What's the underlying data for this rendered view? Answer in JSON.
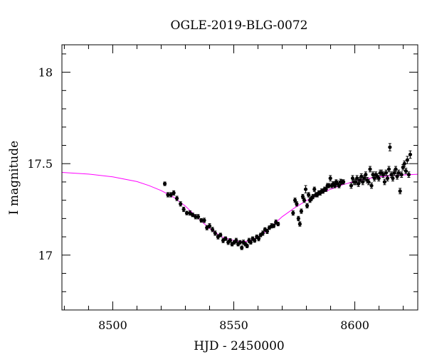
{
  "chart_data": {
    "type": "scatter",
    "title": "OGLE-2019-BLG-0072",
    "xlabel": "HJD - 2450000",
    "ylabel": "I magnitude",
    "xlim": [
      8479,
      8626
    ],
    "ylim": [
      18.15,
      16.7
    ],
    "y_inverted": true,
    "x_ticks": [
      8500,
      8550,
      8600
    ],
    "y_ticks": [
      17,
      17.5,
      18
    ],
    "y_tick_labels": [
      "17",
      "17.5",
      "18"
    ],
    "grid": false,
    "series": [
      {
        "kind": "points_with_errorbars",
        "color": "#000000",
        "points": [
          [
            8521.5,
            17.39,
            0.01
          ],
          [
            8522.8,
            17.33,
            0.012
          ],
          [
            8524.0,
            17.33,
            0.012
          ],
          [
            8525.2,
            17.34,
            0.012
          ],
          [
            8526.5,
            17.31,
            0.012
          ],
          [
            8528.0,
            17.28,
            0.012
          ],
          [
            8529.3,
            17.25,
            0.012
          ],
          [
            8530.6,
            17.23,
            0.01
          ],
          [
            8531.9,
            17.23,
            0.012
          ],
          [
            8533.0,
            17.22,
            0.01
          ],
          [
            8534.2,
            17.21,
            0.012
          ],
          [
            8535.3,
            17.21,
            0.012
          ],
          [
            8536.6,
            17.19,
            0.01
          ],
          [
            8537.8,
            17.19,
            0.012
          ],
          [
            8538.9,
            17.15,
            0.012
          ],
          [
            8540.0,
            17.16,
            0.012
          ],
          [
            8541.2,
            17.14,
            0.012
          ],
          [
            8542.3,
            17.12,
            0.012
          ],
          [
            8543.5,
            17.1,
            0.012
          ],
          [
            8544.5,
            17.11,
            0.01
          ],
          [
            8545.6,
            17.08,
            0.012
          ],
          [
            8546.6,
            17.09,
            0.01
          ],
          [
            8547.7,
            17.07,
            0.012
          ],
          [
            8548.5,
            17.08,
            0.01
          ],
          [
            8549.3,
            17.06,
            0.01
          ],
          [
            8550.2,
            17.07,
            0.01
          ],
          [
            8551.0,
            17.08,
            0.012
          ],
          [
            8551.8,
            17.06,
            0.01
          ],
          [
            8552.6,
            17.07,
            0.01
          ],
          [
            8553.3,
            17.04,
            0.01
          ],
          [
            8554.0,
            17.07,
            0.012
          ],
          [
            8554.8,
            17.06,
            0.01
          ],
          [
            8555.5,
            17.05,
            0.01
          ],
          [
            8556.3,
            17.08,
            0.012
          ],
          [
            8557.0,
            17.07,
            0.01
          ],
          [
            8557.8,
            17.09,
            0.01
          ],
          [
            8558.6,
            17.08,
            0.01
          ],
          [
            8559.5,
            17.1,
            0.01
          ],
          [
            8560.3,
            17.09,
            0.012
          ],
          [
            8561.1,
            17.11,
            0.01
          ],
          [
            8562.0,
            17.12,
            0.012
          ],
          [
            8562.9,
            17.14,
            0.01
          ],
          [
            8563.8,
            17.13,
            0.012
          ],
          [
            8564.7,
            17.15,
            0.01
          ],
          [
            8565.6,
            17.16,
            0.012
          ],
          [
            8566.5,
            17.16,
            0.01
          ],
          [
            8567.4,
            17.18,
            0.012
          ],
          [
            8568.3,
            17.17,
            0.01
          ],
          [
            8574.5,
            17.23,
            0.012
          ],
          [
            8575.3,
            17.3,
            0.012
          ],
          [
            8576.0,
            17.28,
            0.012
          ],
          [
            8576.7,
            17.2,
            0.012
          ],
          [
            8577.3,
            17.17,
            0.012
          ],
          [
            8577.9,
            17.24,
            0.012
          ],
          [
            8578.5,
            17.32,
            0.012
          ],
          [
            8579.1,
            17.3,
            0.012
          ],
          [
            8579.7,
            17.36,
            0.02
          ],
          [
            8580.3,
            17.27,
            0.012
          ],
          [
            8580.9,
            17.33,
            0.012
          ],
          [
            8581.5,
            17.3,
            0.012
          ],
          [
            8582.1,
            17.31,
            0.012
          ],
          [
            8582.7,
            17.32,
            0.012
          ],
          [
            8583.3,
            17.36,
            0.012
          ],
          [
            8583.9,
            17.33,
            0.012
          ],
          [
            8584.5,
            17.33,
            0.012
          ],
          [
            8585.1,
            17.34,
            0.012
          ],
          [
            8585.7,
            17.34,
            0.012
          ],
          [
            8586.3,
            17.35,
            0.012
          ],
          [
            8586.9,
            17.35,
            0.012
          ],
          [
            8587.5,
            17.36,
            0.012
          ],
          [
            8588.1,
            17.36,
            0.012
          ],
          [
            8588.7,
            17.38,
            0.012
          ],
          [
            8589.3,
            17.38,
            0.012
          ],
          [
            8589.9,
            17.42,
            0.015
          ],
          [
            8590.5,
            17.38,
            0.012
          ],
          [
            8591.1,
            17.39,
            0.012
          ],
          [
            8591.7,
            17.38,
            0.012
          ],
          [
            8592.3,
            17.4,
            0.012
          ],
          [
            8592.9,
            17.39,
            0.015
          ],
          [
            8593.5,
            17.38,
            0.012
          ],
          [
            8594.1,
            17.4,
            0.015
          ],
          [
            8594.7,
            17.4,
            0.012
          ],
          [
            8595.3,
            17.4,
            0.012
          ],
          [
            8598.5,
            17.38,
            0.015
          ],
          [
            8599.1,
            17.42,
            0.015
          ],
          [
            8599.7,
            17.4,
            0.015
          ],
          [
            8600.3,
            17.4,
            0.015
          ],
          [
            8600.9,
            17.42,
            0.015
          ],
          [
            8601.5,
            17.39,
            0.015
          ],
          [
            8602.1,
            17.41,
            0.015
          ],
          [
            8602.7,
            17.43,
            0.015
          ],
          [
            8603.3,
            17.4,
            0.015
          ],
          [
            8603.9,
            17.42,
            0.015
          ],
          [
            8604.5,
            17.44,
            0.015
          ],
          [
            8605.1,
            17.41,
            0.015
          ],
          [
            8605.7,
            17.4,
            0.015
          ],
          [
            8606.3,
            17.47,
            0.015
          ],
          [
            8606.9,
            17.38,
            0.015
          ],
          [
            8607.5,
            17.44,
            0.015
          ],
          [
            8608.1,
            17.42,
            0.015
          ],
          [
            8608.7,
            17.44,
            0.015
          ],
          [
            8609.3,
            17.43,
            0.015
          ],
          [
            8609.9,
            17.42,
            0.015
          ],
          [
            8610.5,
            17.45,
            0.015
          ],
          [
            8611.1,
            17.45,
            0.015
          ],
          [
            8611.7,
            17.44,
            0.015
          ],
          [
            8612.3,
            17.4,
            0.015
          ],
          [
            8612.9,
            17.45,
            0.015
          ],
          [
            8613.5,
            17.42,
            0.015
          ],
          [
            8614.1,
            17.47,
            0.015
          ],
          [
            8614.5,
            17.59,
            0.02
          ],
          [
            8615.1,
            17.44,
            0.015
          ],
          [
            8615.7,
            17.42,
            0.015
          ],
          [
            8616.3,
            17.45,
            0.015
          ],
          [
            8616.9,
            17.47,
            0.015
          ],
          [
            8617.5,
            17.43,
            0.015
          ],
          [
            8618.1,
            17.45,
            0.015
          ],
          [
            8618.7,
            17.35,
            0.015
          ],
          [
            8619.3,
            17.44,
            0.015
          ],
          [
            8619.9,
            17.48,
            0.015
          ],
          [
            8620.5,
            17.5,
            0.015
          ],
          [
            8621.1,
            17.46,
            0.015
          ],
          [
            8621.7,
            17.52,
            0.02
          ],
          [
            8622.3,
            17.44,
            0.015
          ],
          [
            8622.9,
            17.55,
            0.02
          ]
        ]
      },
      {
        "kind": "model_curve",
        "color": "#ff00ff",
        "points": [
          [
            8479,
            17.452
          ],
          [
            8490,
            17.443
          ],
          [
            8500,
            17.428
          ],
          [
            8510,
            17.402
          ],
          [
            8515,
            17.38
          ],
          [
            8520,
            17.353
          ],
          [
            8525,
            17.318
          ],
          [
            8530,
            17.268
          ],
          [
            8535,
            17.205
          ],
          [
            8540,
            17.145
          ],
          [
            8545,
            17.1
          ],
          [
            8550,
            17.08
          ],
          [
            8552,
            17.075
          ],
          [
            8555,
            17.075
          ],
          [
            8558,
            17.085
          ],
          [
            8562,
            17.115
          ],
          [
            8566,
            17.162
          ],
          [
            8570,
            17.21
          ],
          [
            8575,
            17.257
          ],
          [
            8580,
            17.298
          ],
          [
            8585,
            17.333
          ],
          [
            8590,
            17.36
          ],
          [
            8595,
            17.385
          ],
          [
            8600,
            17.403
          ],
          [
            8605,
            17.418
          ],
          [
            8610,
            17.428
          ],
          [
            8615,
            17.434
          ],
          [
            8620,
            17.438
          ],
          [
            8626,
            17.442
          ]
        ]
      }
    ]
  }
}
